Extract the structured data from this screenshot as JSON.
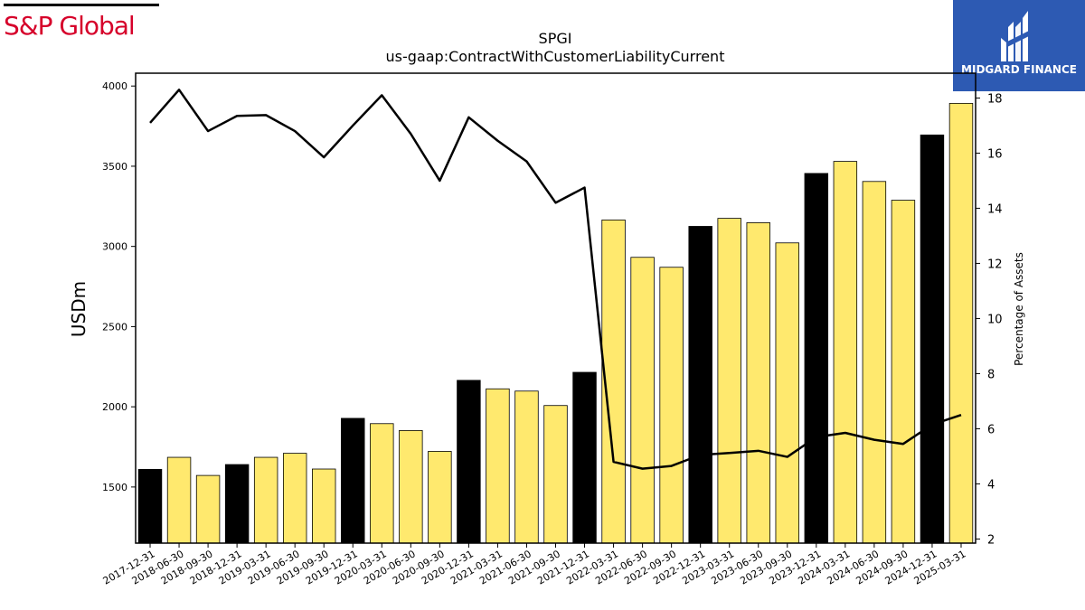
{
  "branding": {
    "left_logo": "S&P Global",
    "right_logo": "MIDGARD FINANCE",
    "left_logo_color": "#d6002a",
    "right_logo_bg": "#2d5ab3"
  },
  "chart_data": {
    "type": "bar",
    "title": "SPGI",
    "subtitle": "us-gaap:ContractWithCustomerLiabilityCurrent",
    "ylabel": "USDm",
    "y2label": "Percentage of Assets",
    "ylim": [
      1150,
      4080
    ],
    "y2lim": [
      1.85,
      18.9
    ],
    "yticks": [
      1500,
      2000,
      2500,
      3000,
      3500,
      4000
    ],
    "y2ticks": [
      2,
      4,
      6,
      8,
      10,
      12,
      14,
      16,
      18
    ],
    "categories": [
      "2017-12-31",
      "2018-06-30",
      "2018-09-30",
      "2018-12-31",
      "2019-03-31",
      "2019-06-30",
      "2019-09-30",
      "2019-12-31",
      "2020-03-31",
      "2020-06-30",
      "2020-09-30",
      "2020-12-31",
      "2021-03-31",
      "2021-06-30",
      "2021-09-30",
      "2021-12-31",
      "2022-03-31",
      "2022-06-30",
      "2022-09-30",
      "2022-12-31",
      "2023-03-31",
      "2023-06-30",
      "2023-09-30",
      "2023-12-31",
      "2024-03-31",
      "2024-06-30",
      "2024-09-30",
      "2024-12-31",
      "2025-03-31"
    ],
    "series": [
      {
        "kind": "bar",
        "values": [
          1610,
          1685,
          1572,
          1640,
          1685,
          1710,
          1612,
          1928,
          1895,
          1852,
          1722,
          2165,
          2112,
          2098,
          2008,
          2215,
          3165,
          2932,
          2870,
          3125,
          3175,
          3148,
          3022,
          3455,
          3530,
          3405,
          3288,
          3695,
          3892
        ],
        "colors": [
          "#000000",
          "#ffe96e",
          "#ffe96e",
          "#000000",
          "#ffe96e",
          "#ffe96e",
          "#ffe96e",
          "#000000",
          "#ffe96e",
          "#ffe96e",
          "#ffe96e",
          "#000000",
          "#ffe96e",
          "#ffe96e",
          "#ffe96e",
          "#000000",
          "#ffe96e",
          "#ffe96e",
          "#ffe96e",
          "#000000",
          "#ffe96e",
          "#ffe96e",
          "#ffe96e",
          "#000000",
          "#ffe96e",
          "#ffe96e",
          "#ffe96e",
          "#000000",
          "#ffe96e"
        ]
      },
      {
        "kind": "line",
        "axis": "right",
        "color": "#000000",
        "values": [
          17.1,
          18.3,
          16.8,
          17.35,
          17.38,
          16.8,
          15.85,
          17.0,
          18.1,
          16.7,
          15.0,
          17.3,
          16.45,
          15.7,
          14.2,
          14.75,
          4.8,
          4.55,
          4.65,
          5.05,
          5.12,
          5.2,
          4.98,
          5.7,
          5.85,
          5.6,
          5.45,
          6.15,
          6.5
        ]
      }
    ],
    "grid": false,
    "legend": "none"
  }
}
